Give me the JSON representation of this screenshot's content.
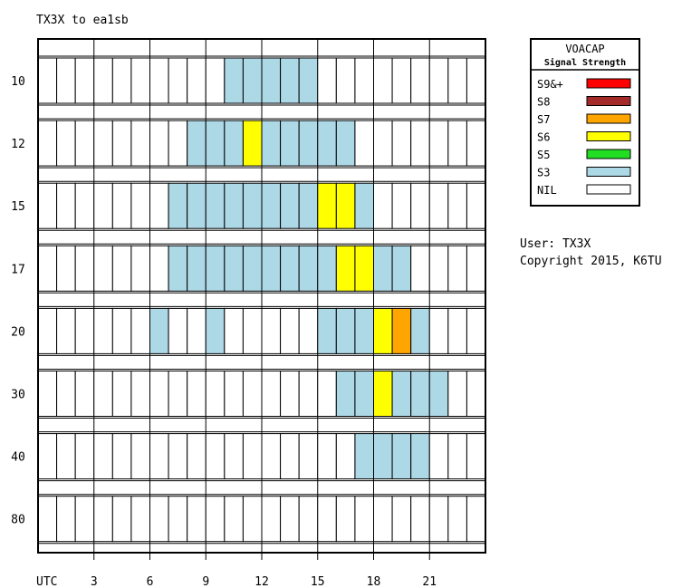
{
  "chart_data": {
    "type": "heatmap",
    "title": "TX3X to ea1sb",
    "x_axis_label": "UTC",
    "x_ticks": [
      "3",
      "6",
      "9",
      "12",
      "15",
      "18",
      "21"
    ],
    "hours": 24,
    "bands": [
      "10",
      "12",
      "15",
      "17",
      "20",
      "30",
      "40",
      "80"
    ],
    "legend_title": "VOACAP",
    "legend_subtitle": "Signal Strength",
    "legend": [
      {
        "key": "S9",
        "label": "S9&+",
        "color": "#ff0000"
      },
      {
        "key": "S8",
        "label": "S8",
        "color": "#a52a2a"
      },
      {
        "key": "S7",
        "label": "S7",
        "color": "#ffa500"
      },
      {
        "key": "S6",
        "label": "S6",
        "color": "#ffff00"
      },
      {
        "key": "S5",
        "label": "S5",
        "color": "#22dd22"
      },
      {
        "key": "S3",
        "label": "S3",
        "color": "#add8e6"
      },
      {
        "key": "NIL",
        "label": "NIL",
        "color": "#ffffff"
      }
    ],
    "cells": [
      [
        "NIL",
        "NIL",
        "NIL",
        "NIL",
        "NIL",
        "NIL",
        "NIL",
        "NIL",
        "NIL",
        "NIL",
        "S3",
        "S3",
        "S3",
        "S3",
        "S3",
        "NIL",
        "NIL",
        "NIL",
        "NIL",
        "NIL",
        "NIL",
        "NIL",
        "NIL",
        "NIL"
      ],
      [
        "NIL",
        "NIL",
        "NIL",
        "NIL",
        "NIL",
        "NIL",
        "NIL",
        "NIL",
        "S3",
        "S3",
        "S3",
        "S6",
        "S3",
        "S3",
        "S3",
        "S3",
        "S3",
        "NIL",
        "NIL",
        "NIL",
        "NIL",
        "NIL",
        "NIL",
        "NIL"
      ],
      [
        "NIL",
        "NIL",
        "NIL",
        "NIL",
        "NIL",
        "NIL",
        "NIL",
        "S3",
        "S3",
        "S3",
        "S3",
        "S3",
        "S3",
        "S3",
        "S3",
        "S6",
        "S6",
        "S3",
        "NIL",
        "NIL",
        "NIL",
        "NIL",
        "NIL",
        "NIL"
      ],
      [
        "NIL",
        "NIL",
        "NIL",
        "NIL",
        "NIL",
        "NIL",
        "NIL",
        "S3",
        "S3",
        "S3",
        "S3",
        "S3",
        "S3",
        "S3",
        "S3",
        "S3",
        "S6",
        "S6",
        "S3",
        "S3",
        "NIL",
        "NIL",
        "NIL",
        "NIL"
      ],
      [
        "NIL",
        "NIL",
        "NIL",
        "NIL",
        "NIL",
        "NIL",
        "S3",
        "NIL",
        "NIL",
        "S3",
        "NIL",
        "NIL",
        "NIL",
        "NIL",
        "NIL",
        "S3",
        "S3",
        "S3",
        "S6",
        "S7",
        "S3",
        "NIL",
        "NIL",
        "NIL"
      ],
      [
        "NIL",
        "NIL",
        "NIL",
        "NIL",
        "NIL",
        "NIL",
        "NIL",
        "NIL",
        "NIL",
        "NIL",
        "NIL",
        "NIL",
        "NIL",
        "NIL",
        "NIL",
        "NIL",
        "S3",
        "S3",
        "S6",
        "S3",
        "S3",
        "S3",
        "NIL",
        "NIL"
      ],
      [
        "NIL",
        "NIL",
        "NIL",
        "NIL",
        "NIL",
        "NIL",
        "NIL",
        "NIL",
        "NIL",
        "NIL",
        "NIL",
        "NIL",
        "NIL",
        "NIL",
        "NIL",
        "NIL",
        "NIL",
        "S3",
        "S3",
        "S3",
        "S3",
        "NIL",
        "NIL",
        "NIL"
      ],
      [
        "NIL",
        "NIL",
        "NIL",
        "NIL",
        "NIL",
        "NIL",
        "NIL",
        "NIL",
        "NIL",
        "NIL",
        "NIL",
        "NIL",
        "NIL",
        "NIL",
        "NIL",
        "NIL",
        "NIL",
        "NIL",
        "NIL",
        "NIL",
        "NIL",
        "NIL",
        "NIL",
        "NIL"
      ]
    ]
  },
  "info": {
    "user": "User: TX3X",
    "copyright": "Copyright 2015, K6TU"
  }
}
